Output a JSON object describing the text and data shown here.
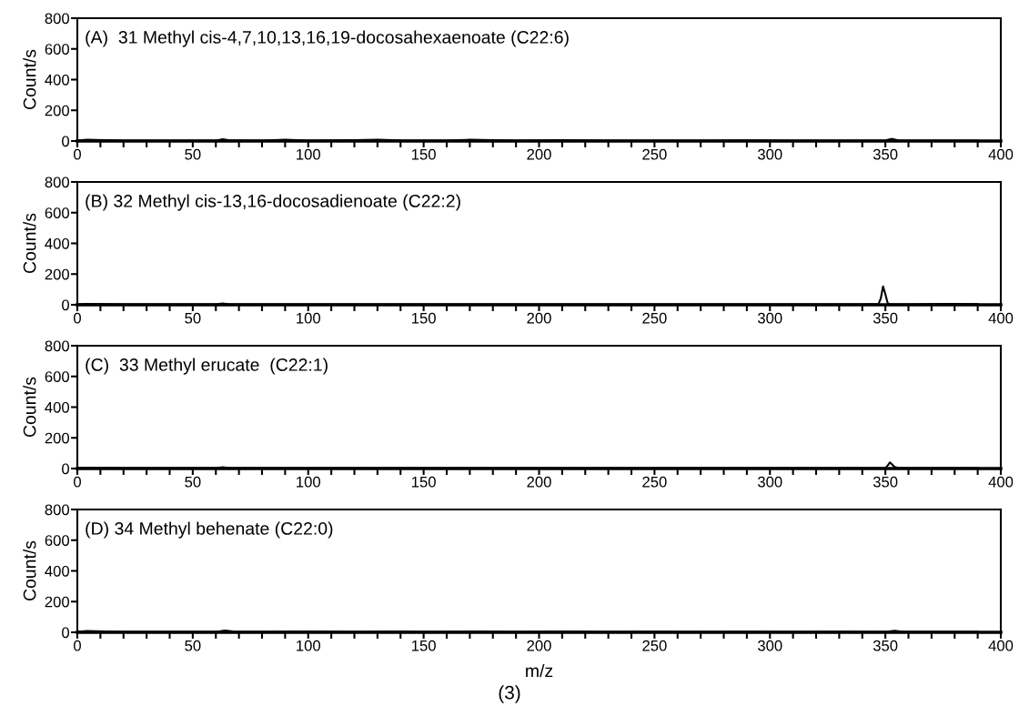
{
  "chart_data": [
    {
      "type": "line",
      "title": "(A)  31 Methyl cis-4,7,10,13,16,19-docosahexaenoate (C22:6)",
      "ylabel": "Count/s",
      "xlim": [
        0,
        400
      ],
      "ylim": [
        0,
        800
      ],
      "yticks": [
        0,
        200,
        400,
        600,
        800
      ],
      "xticks": [
        0,
        {
          "value": 10,
          "label": null
        },
        {
          "value": 20,
          "label": null
        },
        {
          "value": 30,
          "label": null
        },
        {
          "value": 40,
          "label": null
        },
        50,
        {
          "value": 60,
          "label": null
        },
        {
          "value": 70,
          "label": null
        },
        {
          "value": 80,
          "label": null
        },
        {
          "value": 90,
          "label": null
        },
        100,
        {
          "value": 110,
          "label": null
        },
        {
          "value": 120,
          "label": null
        },
        {
          "value": 130,
          "label": null
        },
        {
          "value": 140,
          "label": null
        },
        150,
        {
          "value": 160,
          "label": null
        },
        {
          "value": 170,
          "label": null
        },
        {
          "value": 180,
          "label": null
        },
        {
          "value": 190,
          "label": null
        },
        200,
        {
          "value": 210,
          "label": null
        },
        {
          "value": 220,
          "label": null
        },
        {
          "value": 230,
          "label": null
        },
        {
          "value": 240,
          "label": null
        },
        250,
        {
          "value": 260,
          "label": null
        },
        {
          "value": 270,
          "label": null
        },
        {
          "value": 280,
          "label": null
        },
        {
          "value": 290,
          "label": null
        },
        300,
        {
          "value": 310,
          "label": null
        },
        {
          "value": 320,
          "label": null
        },
        {
          "value": 330,
          "label": null
        },
        {
          "value": 340,
          "label": null
        },
        350,
        {
          "value": 360,
          "label": null
        },
        {
          "value": 370,
          "label": null
        },
        {
          "value": 380,
          "label": null
        },
        {
          "value": 390,
          "label": null
        },
        400
      ],
      "grid": false,
      "legend": false,
      "series": [
        {
          "color": "#000000",
          "x": [
            0,
            4,
            20,
            40,
            60,
            63,
            66,
            80,
            90,
            100,
            120,
            130,
            140,
            160,
            170,
            190,
            210,
            230,
            250,
            270,
            290,
            310,
            330,
            345,
            350,
            353,
            356,
            370,
            380,
            390
          ],
          "values": [
            3,
            8,
            2,
            2,
            3,
            12,
            5,
            2,
            8,
            3,
            6,
            8,
            4,
            3,
            8,
            2,
            6,
            2,
            3,
            2,
            4,
            2,
            3,
            2,
            4,
            14,
            3,
            2,
            2,
            2
          ]
        }
      ]
    },
    {
      "type": "line",
      "title": "(B) 32 Methyl cis-13,16-docosadienoate (C22:2)",
      "ylabel": "Count/s",
      "xlim": [
        0,
        400
      ],
      "ylim": [
        0,
        800
      ],
      "yticks": [
        0,
        200,
        400,
        600,
        800
      ],
      "xticks": [
        0,
        {
          "value": 10,
          "label": null
        },
        {
          "value": 20,
          "label": null
        },
        {
          "value": 30,
          "label": null
        },
        {
          "value": 40,
          "label": null
        },
        50,
        {
          "value": 60,
          "label": null
        },
        {
          "value": 70,
          "label": null
        },
        {
          "value": 80,
          "label": null
        },
        {
          "value": 90,
          "label": null
        },
        100,
        {
          "value": 110,
          "label": null
        },
        {
          "value": 120,
          "label": null
        },
        {
          "value": 130,
          "label": null
        },
        {
          "value": 140,
          "label": null
        },
        150,
        {
          "value": 160,
          "label": null
        },
        {
          "value": 170,
          "label": null
        },
        {
          "value": 180,
          "label": null
        },
        {
          "value": 190,
          "label": null
        },
        200,
        {
          "value": 210,
          "label": null
        },
        {
          "value": 220,
          "label": null
        },
        {
          "value": 230,
          "label": null
        },
        {
          "value": 240,
          "label": null
        },
        250,
        {
          "value": 260,
          "label": null
        },
        {
          "value": 270,
          "label": null
        },
        {
          "value": 280,
          "label": null
        },
        {
          "value": 290,
          "label": null
        },
        300,
        {
          "value": 310,
          "label": null
        },
        {
          "value": 320,
          "label": null
        },
        {
          "value": 330,
          "label": null
        },
        {
          "value": 340,
          "label": null
        },
        350,
        {
          "value": 360,
          "label": null
        },
        {
          "value": 370,
          "label": null
        },
        {
          "value": 380,
          "label": null
        },
        {
          "value": 390,
          "label": null
        },
        400
      ],
      "grid": false,
      "legend": false,
      "series": [
        {
          "color": "#000000",
          "x": [
            0,
            4,
            20,
            40,
            60,
            63,
            66,
            80,
            100,
            120,
            140,
            160,
            180,
            200,
            220,
            240,
            260,
            280,
            300,
            320,
            340,
            347,
            348,
            349,
            350,
            351,
            352,
            360,
            375,
            380,
            390
          ],
          "values": [
            3,
            6,
            2,
            2,
            3,
            8,
            3,
            2,
            3,
            2,
            3,
            2,
            2,
            3,
            2,
            2,
            3,
            2,
            2,
            3,
            2,
            5,
            40,
            120,
            70,
            10,
            3,
            2,
            6,
            6,
            4
          ]
        }
      ]
    },
    {
      "type": "line",
      "title": "(C)  33 Methyl erucate  (C22:1)",
      "ylabel": "Count/s",
      "xlim": [
        0,
        400
      ],
      "ylim": [
        0,
        800
      ],
      "yticks": [
        0,
        200,
        400,
        600,
        800
      ],
      "xticks": [
        0,
        {
          "value": 10,
          "label": null
        },
        {
          "value": 20,
          "label": null
        },
        {
          "value": 30,
          "label": null
        },
        {
          "value": 40,
          "label": null
        },
        50,
        {
          "value": 60,
          "label": null
        },
        {
          "value": 70,
          "label": null
        },
        {
          "value": 80,
          "label": null
        },
        {
          "value": 90,
          "label": null
        },
        100,
        {
          "value": 110,
          "label": null
        },
        {
          "value": 120,
          "label": null
        },
        {
          "value": 130,
          "label": null
        },
        {
          "value": 140,
          "label": null
        },
        150,
        {
          "value": 160,
          "label": null
        },
        {
          "value": 170,
          "label": null
        },
        {
          "value": 180,
          "label": null
        },
        {
          "value": 190,
          "label": null
        },
        200,
        {
          "value": 210,
          "label": null
        },
        {
          "value": 220,
          "label": null
        },
        {
          "value": 230,
          "label": null
        },
        {
          "value": 240,
          "label": null
        },
        250,
        {
          "value": 260,
          "label": null
        },
        {
          "value": 270,
          "label": null
        },
        {
          "value": 280,
          "label": null
        },
        {
          "value": 290,
          "label": null
        },
        300,
        {
          "value": 310,
          "label": null
        },
        {
          "value": 320,
          "label": null
        },
        {
          "value": 330,
          "label": null
        },
        {
          "value": 340,
          "label": null
        },
        350,
        {
          "value": 360,
          "label": null
        },
        {
          "value": 370,
          "label": null
        },
        {
          "value": 380,
          "label": null
        },
        {
          "value": 390,
          "label": null
        },
        400
      ],
      "grid": false,
      "legend": false,
      "series": [
        {
          "color": "#000000",
          "x": [
            0,
            4,
            20,
            40,
            60,
            63,
            66,
            80,
            100,
            120,
            140,
            160,
            180,
            200,
            220,
            240,
            260,
            280,
            300,
            320,
            340,
            350,
            351,
            352,
            353,
            354,
            356,
            360,
            375,
            390
          ],
          "values": [
            3,
            6,
            2,
            2,
            3,
            8,
            3,
            2,
            3,
            2,
            3,
            2,
            2,
            3,
            2,
            2,
            3,
            2,
            2,
            3,
            2,
            3,
            20,
            40,
            25,
            10,
            3,
            2,
            2,
            2
          ]
        }
      ]
    },
    {
      "type": "line",
      "title": "(D) 34 Methyl behenate (C22:0)",
      "ylabel": "Count/s",
      "xlabel": "m/z",
      "annotations": [
        "(3)"
      ],
      "xlim": [
        0,
        400
      ],
      "ylim": [
        0,
        800
      ],
      "yticks": [
        0,
        200,
        400,
        600,
        800
      ],
      "xticks": [
        0,
        {
          "value": 10,
          "label": null
        },
        {
          "value": 20,
          "label": null
        },
        {
          "value": 30,
          "label": null
        },
        {
          "value": 40,
          "label": null
        },
        50,
        {
          "value": 60,
          "label": null
        },
        {
          "value": 70,
          "label": null
        },
        {
          "value": 80,
          "label": null
        },
        {
          "value": 90,
          "label": null
        },
        100,
        {
          "value": 110,
          "label": null
        },
        {
          "value": 120,
          "label": null
        },
        {
          "value": 130,
          "label": null
        },
        {
          "value": 140,
          "label": null
        },
        150,
        {
          "value": 160,
          "label": null
        },
        {
          "value": 170,
          "label": null
        },
        {
          "value": 180,
          "label": null
        },
        {
          "value": 190,
          "label": null
        },
        200,
        {
          "value": 210,
          "label": null
        },
        {
          "value": 220,
          "label": null
        },
        {
          "value": 230,
          "label": null
        },
        {
          "value": 240,
          "label": null
        },
        250,
        {
          "value": 260,
          "label": null
        },
        {
          "value": 270,
          "label": null
        },
        {
          "value": 280,
          "label": null
        },
        {
          "value": 290,
          "label": null
        },
        300,
        {
          "value": 310,
          "label": null
        },
        {
          "value": 320,
          "label": null
        },
        {
          "value": 330,
          "label": null
        },
        {
          "value": 340,
          "label": null
        },
        350,
        {
          "value": 360,
          "label": null
        },
        {
          "value": 370,
          "label": null
        },
        {
          "value": 380,
          "label": null
        },
        {
          "value": 390,
          "label": null
        },
        400
      ],
      "grid": false,
      "legend": false,
      "series": [
        {
          "color": "#000000",
          "x": [
            0,
            4,
            20,
            40,
            60,
            64,
            68,
            80,
            100,
            120,
            140,
            150,
            170,
            190,
            210,
            230,
            250,
            270,
            290,
            310,
            330,
            345,
            350,
            354,
            358,
            370,
            390
          ],
          "values": [
            3,
            9,
            2,
            2,
            3,
            12,
            4,
            2,
            5,
            3,
            5,
            3,
            5,
            2,
            6,
            2,
            4,
            3,
            4,
            2,
            4,
            2,
            3,
            10,
            3,
            2,
            2
          ]
        }
      ]
    }
  ]
}
